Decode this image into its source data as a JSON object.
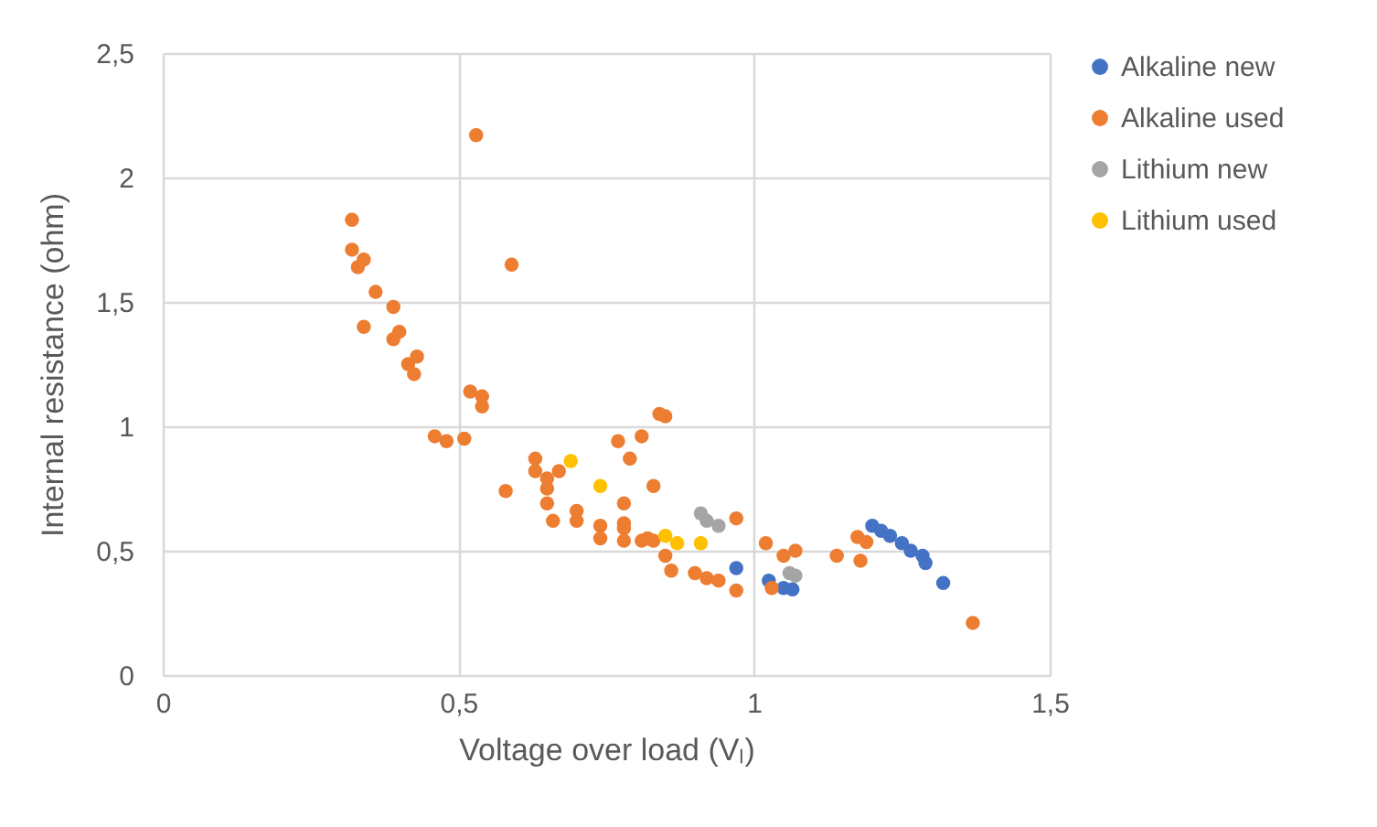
{
  "chart_data": {
    "type": "scatter",
    "xlabel": "Voltage over load (Vₗ)",
    "ylabel": "Internal resistance (ohm)",
    "xlim": [
      0,
      1.5
    ],
    "ylim": [
      0,
      2.5
    ],
    "xticks": [
      0,
      {
        "value": 0.5,
        "label": "0,5"
      },
      1,
      {
        "value": 1.5,
        "label": "1,5"
      }
    ],
    "yticks": [
      0,
      {
        "value": 0.5,
        "label": "0,5"
      },
      1,
      {
        "value": 1.5,
        "label": "1,5"
      },
      2,
      {
        "value": 2.5,
        "label": "2,5"
      }
    ],
    "grid": true,
    "legend": "right",
    "marker": "circle",
    "series": [
      {
        "name": "Alkaline new",
        "color": "#4472c4",
        "x": [
          0.97,
          1.025,
          1.05,
          1.065,
          1.2,
          1.215,
          1.23,
          1.25,
          1.265,
          1.285,
          1.29,
          1.32
        ],
        "values": [
          0.43,
          0.38,
          0.35,
          0.345,
          0.6,
          0.58,
          0.56,
          0.53,
          0.5,
          0.48,
          0.45,
          0.37
        ]
      },
      {
        "name": "Alkaline used",
        "color": "#ed7d31",
        "x": [
          0.32,
          0.32,
          0.33,
          0.34,
          0.34,
          0.36,
          0.39,
          0.39,
          0.4,
          0.415,
          0.425,
          0.43,
          0.46,
          0.48,
          0.51,
          0.52,
          0.54,
          0.54,
          0.53,
          0.59,
          0.58,
          0.63,
          0.63,
          0.65,
          0.65,
          0.65,
          0.66,
          0.67,
          0.7,
          0.7,
          0.74,
          0.74,
          0.77,
          0.78,
          0.78,
          0.78,
          0.78,
          0.79,
          0.81,
          0.81,
          0.82,
          0.83,
          0.83,
          0.84,
          0.85,
          0.85,
          0.86,
          0.9,
          0.92,
          0.94,
          0.97,
          0.97,
          1.02,
          1.03,
          1.05,
          1.07,
          1.14,
          1.175,
          1.19,
          1.18,
          1.37
        ],
        "values": [
          1.83,
          1.71,
          1.64,
          1.67,
          1.4,
          1.54,
          1.48,
          1.35,
          1.38,
          1.25,
          1.21,
          1.28,
          0.96,
          0.94,
          0.95,
          1.14,
          1.12,
          1.08,
          2.17,
          1.65,
          0.74,
          0.87,
          0.82,
          0.79,
          0.75,
          0.69,
          0.62,
          0.82,
          0.66,
          0.62,
          0.6,
          0.55,
          0.94,
          0.69,
          0.61,
          0.59,
          0.54,
          0.87,
          0.96,
          0.54,
          0.55,
          0.54,
          0.76,
          1.05,
          1.04,
          0.48,
          0.42,
          0.41,
          0.39,
          0.38,
          0.63,
          0.34,
          0.53,
          0.35,
          0.48,
          0.5,
          0.48,
          0.555,
          0.535,
          0.46,
          0.21
        ]
      },
      {
        "name": "Lithium new",
        "color": "#a5a5a5",
        "x": [
          0.91,
          0.92,
          0.94,
          1.06,
          1.07
        ],
        "values": [
          0.65,
          0.62,
          0.6,
          0.41,
          0.4
        ]
      },
      {
        "name": "Lithium used",
        "color": "#ffc000",
        "x": [
          0.69,
          0.74,
          0.85,
          0.87,
          0.91
        ],
        "values": [
          0.86,
          0.76,
          0.56,
          0.53,
          0.53
        ]
      }
    ]
  }
}
